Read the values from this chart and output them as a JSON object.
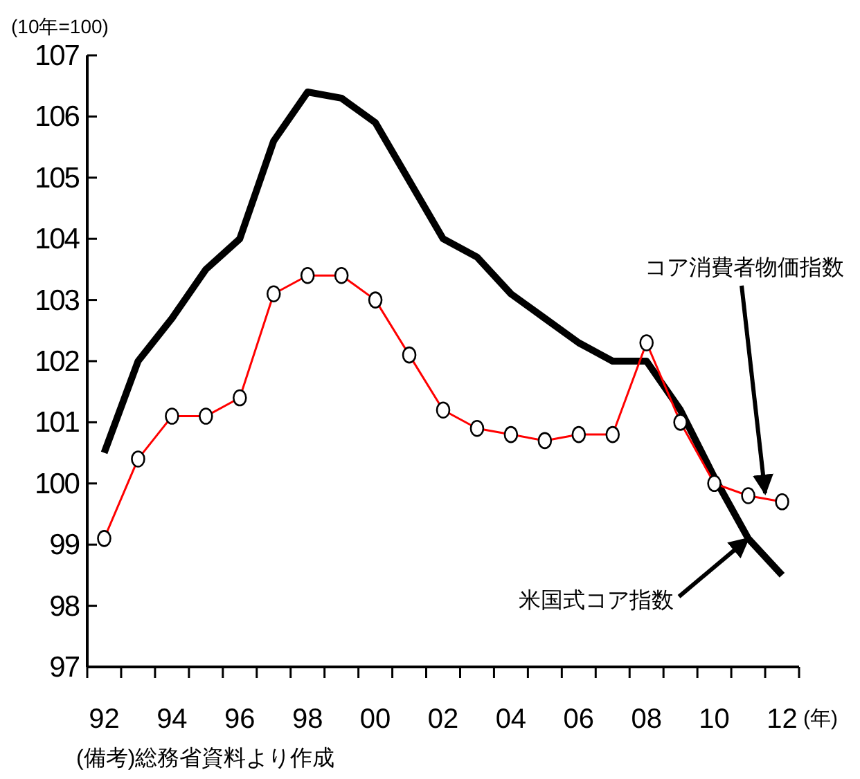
{
  "chart_data": {
    "type": "line",
    "ylabel": "(10年=100)",
    "xlabel": "(年)",
    "x": [
      1992,
      1993,
      1994,
      1995,
      1996,
      1997,
      1998,
      1999,
      2000,
      2001,
      2002,
      2003,
      2004,
      2005,
      2006,
      2007,
      2008,
      2009,
      2010,
      2011,
      2012
    ],
    "series": [
      {
        "name": "米国式コア指数",
        "color": "#000000",
        "marker": "none",
        "values": [
          100.5,
          102.0,
          102.7,
          103.5,
          104.0,
          105.6,
          106.4,
          106.3,
          105.9,
          104.95,
          104.0,
          103.7,
          103.1,
          102.7,
          102.3,
          102.0,
          102.0,
          101.2,
          100.1,
          99.1,
          98.5
        ]
      },
      {
        "name": "コア消費者物価指数",
        "color": "#ff0000",
        "marker": "circle",
        "values": [
          99.1,
          100.4,
          101.1,
          101.1,
          101.4,
          103.1,
          103.4,
          103.4,
          103.0,
          102.1,
          101.2,
          100.9,
          100.8,
          100.7,
          100.8,
          100.8,
          102.3,
          101.0,
          100.0,
          99.8,
          99.7
        ]
      }
    ],
    "xlim": [
      1991.5,
      2012.5
    ],
    "xticks": [
      {
        "value": 1991.5,
        "label": null
      },
      {
        "value": 1992,
        "label": "92"
      },
      {
        "value": 1992.5,
        "label": null
      },
      {
        "value": 1993.5,
        "label": null
      },
      {
        "value": 1994,
        "label": "94"
      },
      {
        "value": 1994.5,
        "label": null
      },
      {
        "value": 1995.5,
        "label": null
      },
      {
        "value": 1996,
        "label": "96"
      },
      {
        "value": 1996.5,
        "label": null
      },
      {
        "value": 1997.5,
        "label": null
      },
      {
        "value": 1998,
        "label": "98"
      },
      {
        "value": 1998.5,
        "label": null
      },
      {
        "value": 1999.5,
        "label": null
      },
      {
        "value": 2000,
        "label": "00"
      },
      {
        "value": 2000.5,
        "label": null
      },
      {
        "value": 2001.5,
        "label": null
      },
      {
        "value": 2002,
        "label": "02"
      },
      {
        "value": 2002.5,
        "label": null
      },
      {
        "value": 2003.5,
        "label": null
      },
      {
        "value": 2004,
        "label": "04"
      },
      {
        "value": 2004.5,
        "label": null
      },
      {
        "value": 2005.5,
        "label": null
      },
      {
        "value": 2006,
        "label": "06"
      },
      {
        "value": 2006.5,
        "label": null
      },
      {
        "value": 2007.5,
        "label": null
      },
      {
        "value": 2008,
        "label": "08"
      },
      {
        "value": 2008.5,
        "label": null
      },
      {
        "value": 2009.5,
        "label": null
      },
      {
        "value": 2010,
        "label": "10"
      },
      {
        "value": 2010.5,
        "label": null
      },
      {
        "value": 2011.5,
        "label": null
      },
      {
        "value": 2012,
        "label": "12"
      },
      {
        "value": 2012.5,
        "label": null
      }
    ],
    "ylim": [
      97,
      107
    ],
    "yticks": [
      97,
      98,
      99,
      100,
      101,
      102,
      103,
      104,
      105,
      106,
      107
    ],
    "grid": false,
    "annotations": [
      "(備考)総務省資料より作成"
    ]
  }
}
